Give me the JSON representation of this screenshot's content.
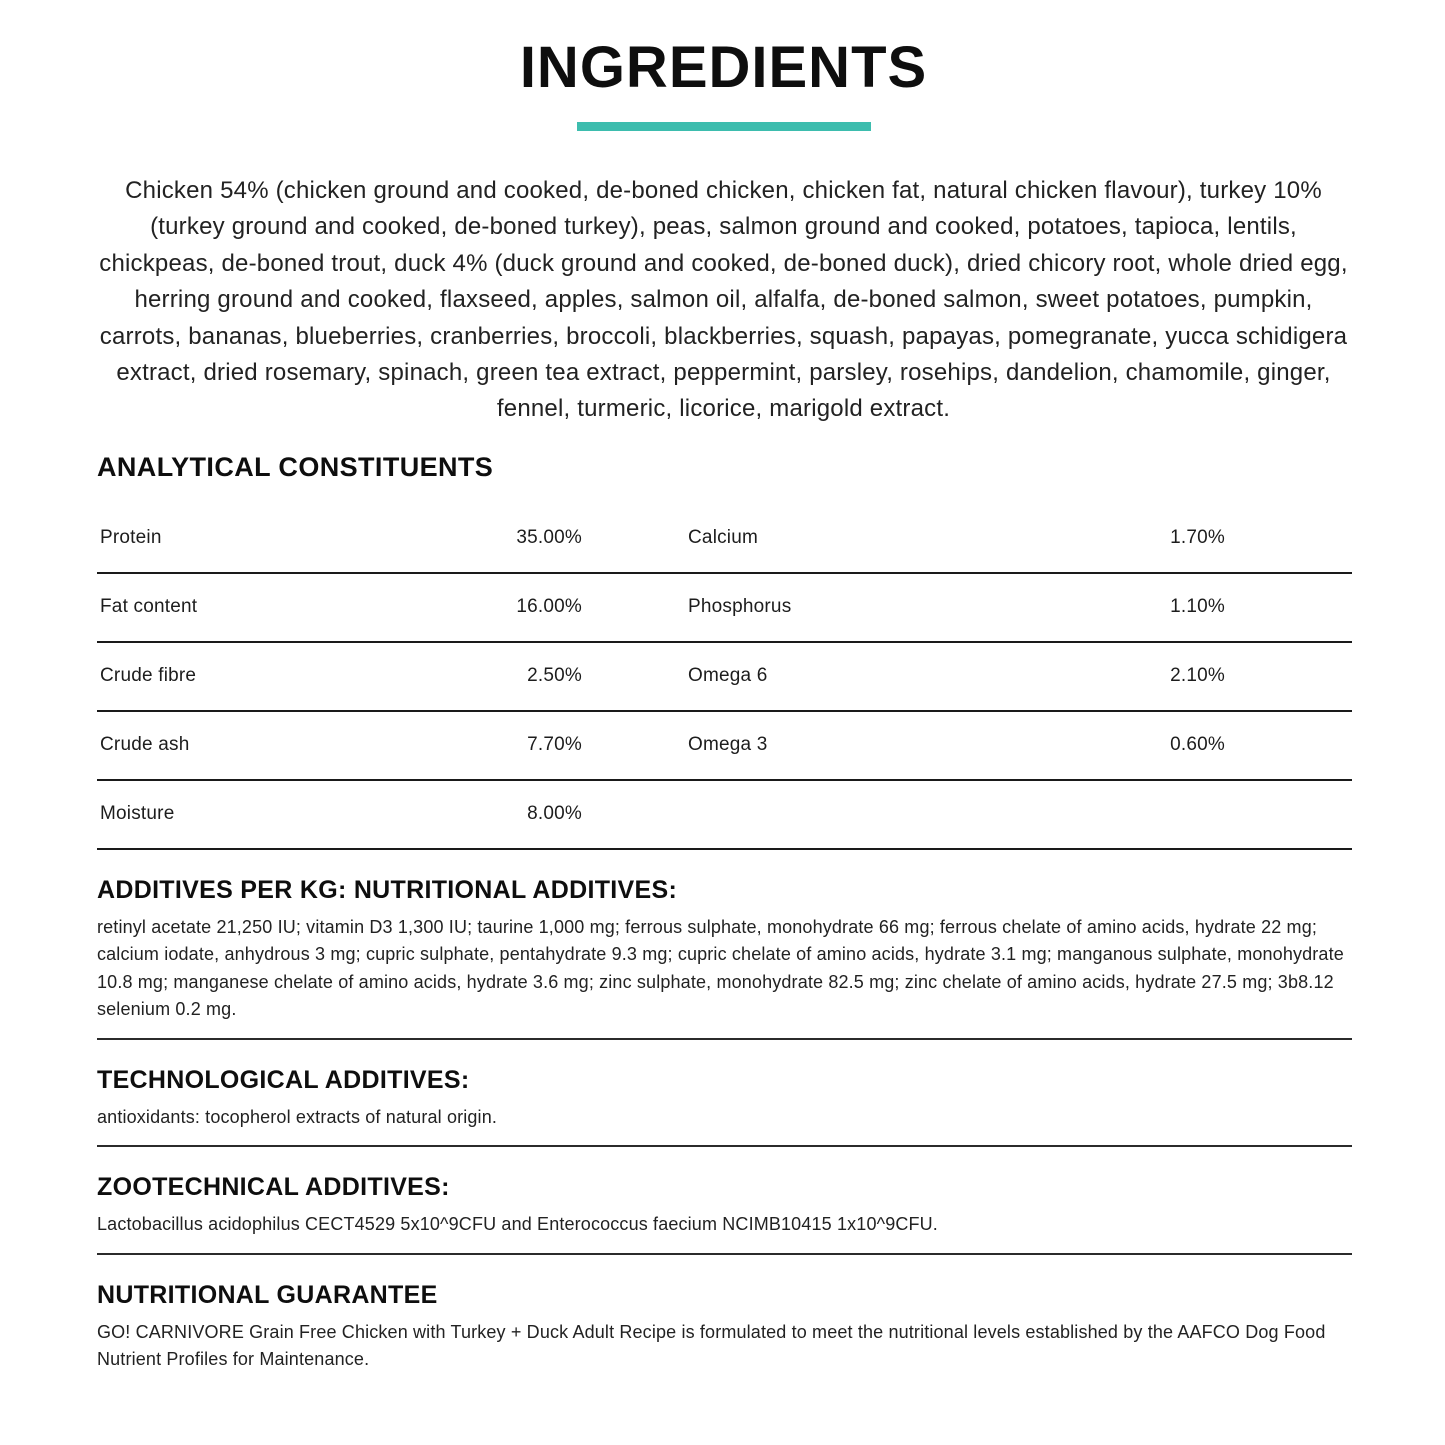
{
  "page": {
    "title": "INGREDIENTS",
    "accent_color": "#3dbdae",
    "ingredients_text": "Chicken 54% (chicken ground and cooked, de-boned chicken, chicken fat, natural chicken flavour), turkey 10% (turkey ground and cooked, de-boned turkey), peas, salmon ground and cooked, potatoes, tapioca, lentils, chickpeas, de-boned trout, duck 4% (duck ground and cooked, de-boned duck), dried chicory root, whole dried egg, herring ground and cooked, flaxseed, apples, salmon oil, alfalfa, de-boned salmon, sweet potatoes, pumpkin, carrots, bananas, blueberries, cranberries, broccoli, blackberries, squash, papayas, pomegranate, yucca schidigera extract, dried rosemary, spinach, green tea extract, peppermint, parsley, rosehips, dandelion, chamomile, ginger, fennel, turmeric, licorice, marigold extract."
  },
  "analytical": {
    "heading": "ANALYTICAL CONSTITUENTS",
    "rows": [
      {
        "label1": "Protein",
        "value1": "35.00%",
        "label2": "Calcium",
        "value2": "1.70%"
      },
      {
        "label1": "Fat content",
        "value1": "16.00%",
        "label2": "Phosphorus",
        "value2": "1.10%"
      },
      {
        "label1": "Crude fibre",
        "value1": "2.50%",
        "label2": "Omega 6",
        "value2": "2.10%"
      },
      {
        "label1": "Crude ash",
        "value1": "7.70%",
        "label2": "Omega 3",
        "value2": "0.60%"
      },
      {
        "label1": "Moisture",
        "value1": "8.00%",
        "label2": "",
        "value2": ""
      }
    ]
  },
  "sections": [
    {
      "heading": "ADDITIVES PER KG: NUTRITIONAL ADDITIVES:",
      "body": "retinyl acetate 21,250 IU; vitamin D3 1,300 IU; taurine 1,000 mg; ferrous sulphate, monohydrate 66 mg; ferrous chelate of amino acids, hydrate 22 mg; calcium iodate, anhydrous 3 mg; cupric sulphate, pentahydrate 9.3 mg; cupric chelate of amino acids, hydrate 3.1 mg; manganous sulphate, monohydrate 10.8 mg; manganese chelate of amino acids, hydrate 3.6 mg; zinc sulphate, monohydrate 82.5 mg; zinc chelate of amino acids, hydrate 27.5 mg; 3b8.12 selenium 0.2 mg."
    },
    {
      "heading": "TECHNOLOGICAL ADDITIVES:",
      "body": "antioxidants: tocopherol extracts of natural origin."
    },
    {
      "heading": "ZOOTECHNICAL ADDITIVES:",
      "body": "Lactobacillus acidophilus CECT4529 5x10^9CFU and Enterococcus faecium NCIMB10415 1x10^9CFU."
    },
    {
      "heading": "NUTRITIONAL GUARANTEE",
      "body": "GO! CARNIVORE Grain Free Chicken with Turkey + Duck Adult Recipe is formulated to meet the nutritional levels established by the AAFCO Dog Food Nutrient Profiles for Maintenance."
    }
  ]
}
